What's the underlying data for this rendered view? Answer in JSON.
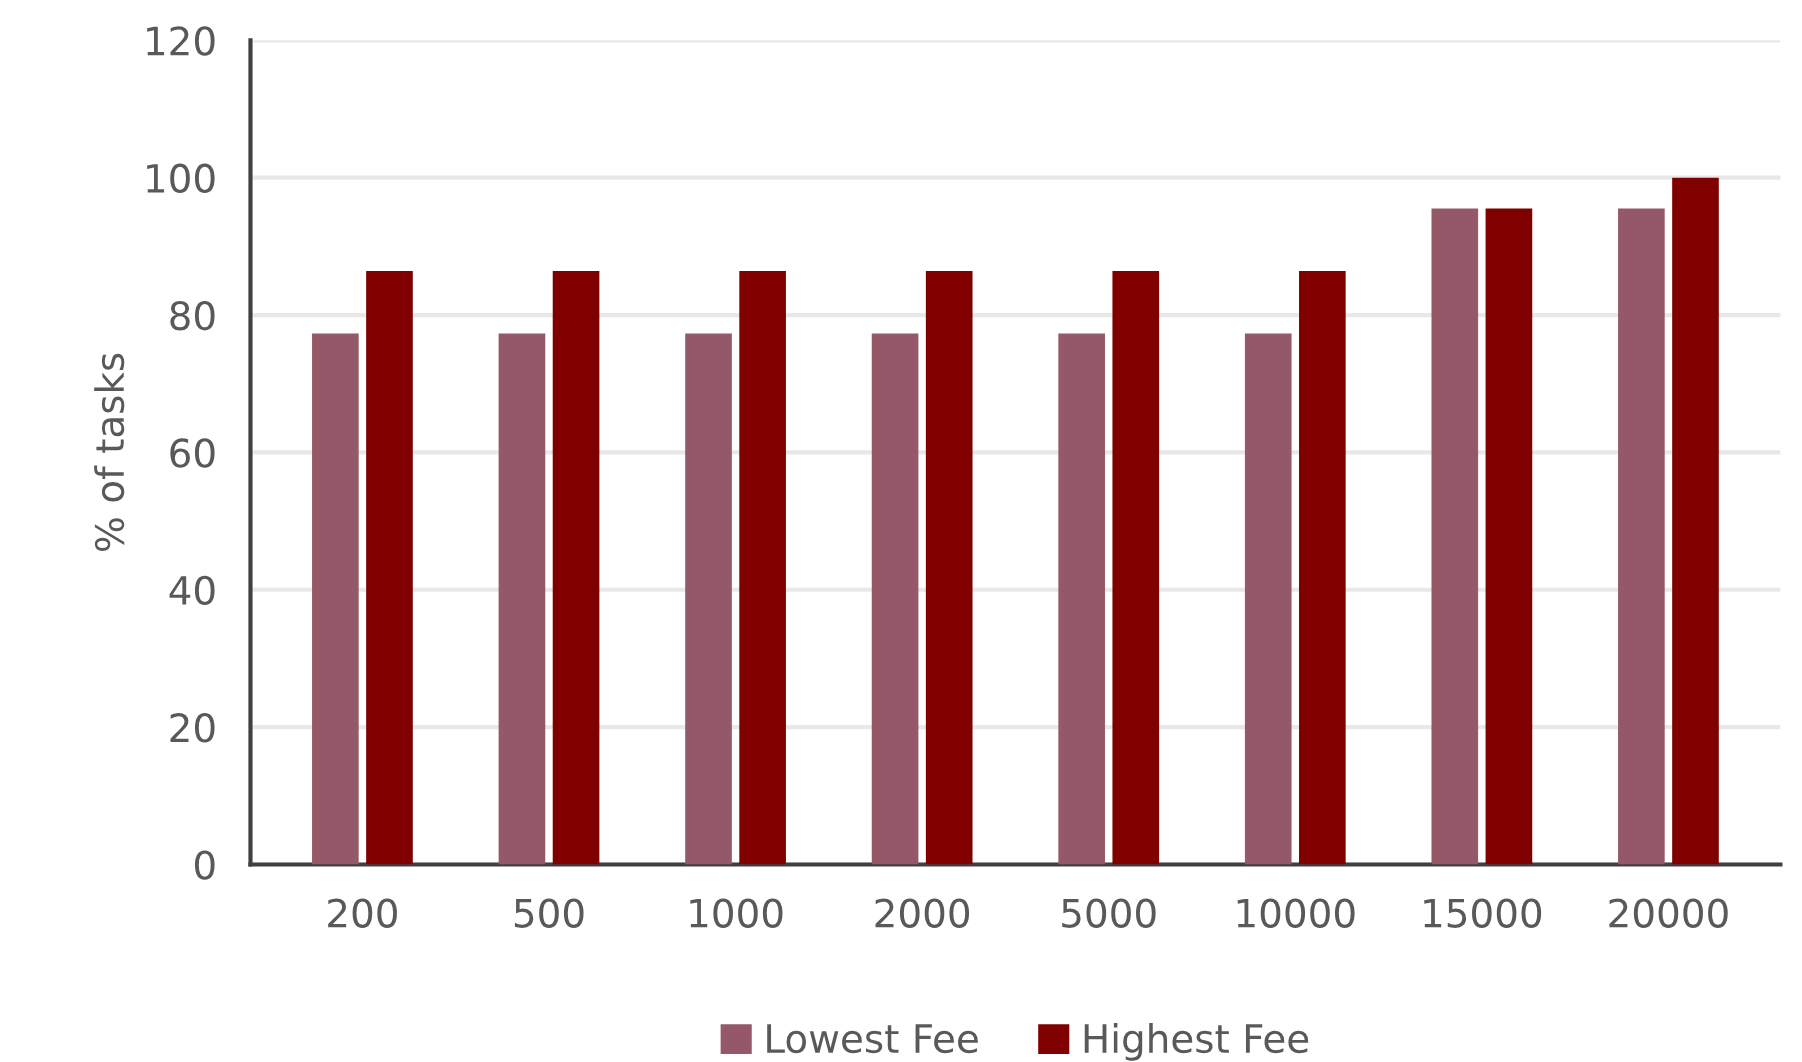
{
  "chart_data": {
    "type": "bar",
    "ylabel": "% of tasks",
    "categories": [
      "200",
      "500",
      "1000",
      "2000",
      "5000",
      "10000",
      "15000",
      "20000"
    ],
    "series": [
      {
        "name": "Lowest Fee",
        "color": "#955868",
        "values": [
          77.3,
          77.3,
          77.3,
          77.3,
          77.3,
          77.3,
          95.5,
          95.5
        ]
      },
      {
        "name": "Highest Fee",
        "color": "#800000",
        "values": [
          86.4,
          86.4,
          86.4,
          86.4,
          86.4,
          86.4,
          95.5,
          100
        ]
      }
    ],
    "ylim": [
      0,
      120
    ],
    "yticks": [
      0,
      20,
      40,
      60,
      80,
      100,
      120
    ],
    "grid": "y",
    "legend": "bottom"
  }
}
